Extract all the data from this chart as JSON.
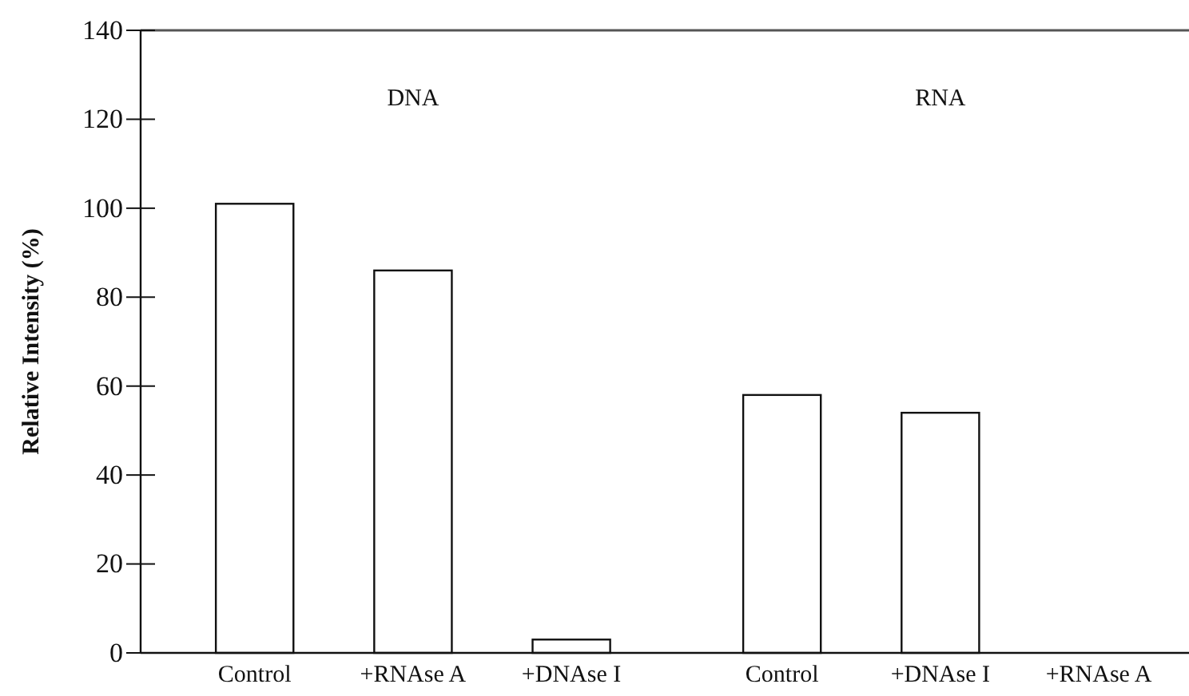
{
  "chart_data": {
    "type": "bar",
    "ylabel": "Relative Intensity (%)",
    "categories": [
      "Control",
      "+RNAse A",
      "+DNAse I",
      "Control",
      "+DNAse I",
      "+RNAse A"
    ],
    "values": [
      101,
      86,
      3,
      58,
      54,
      0
    ],
    "color": "#ffffff",
    "ylim": [
      0,
      140
    ],
    "yticks": [
      0,
      20,
      40,
      60,
      80,
      100,
      120,
      140
    ],
    "annotations": [
      "DNA",
      "RNA"
    ],
    "grid": false
  }
}
